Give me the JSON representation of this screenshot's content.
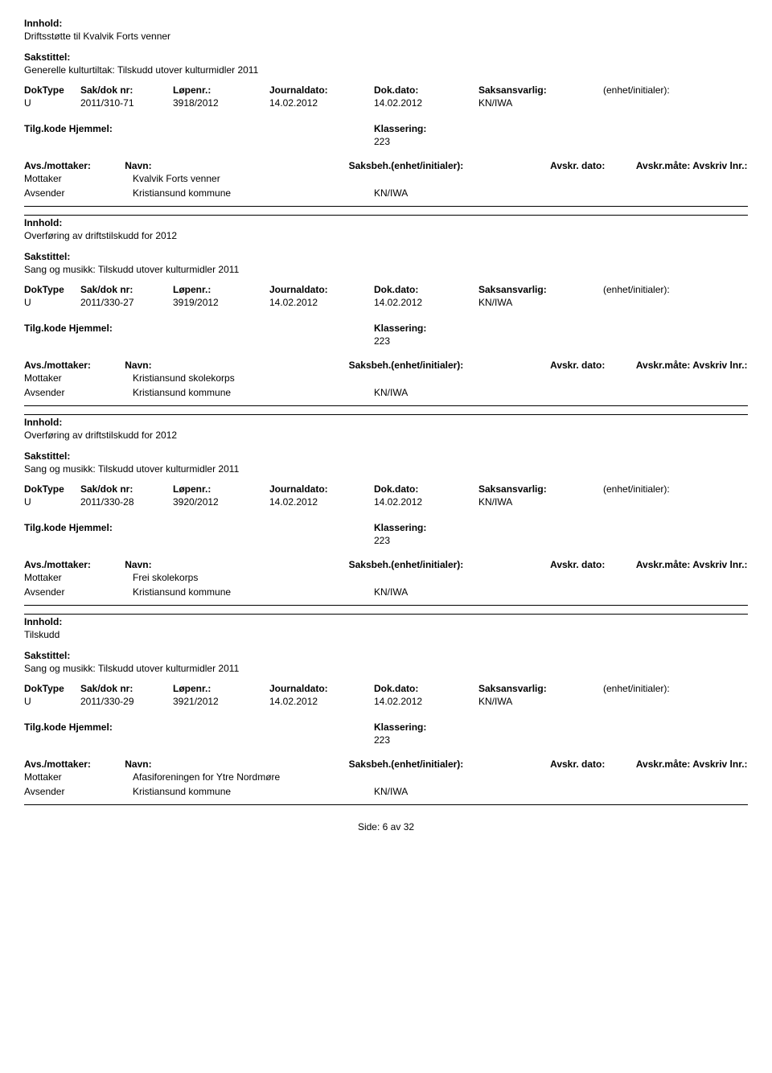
{
  "labels": {
    "innhold": "Innhold:",
    "sakstittel": "Sakstittel:",
    "doktype": "DokType",
    "sakdoknr": "Sak/dok nr:",
    "lopenr": "Løpenr.:",
    "journaldato": "Journaldato:",
    "dokdato": "Dok.dato:",
    "saksansvarlig": "Saksansvarlig:",
    "enhet_initialer": "(enhet/initialer):",
    "tilgkode": "Tilg.kode",
    "hjemmel": "Hjemmel:",
    "klassering": "Klassering:",
    "avsmottaker": "Avs./mottaker:",
    "navn": "Navn:",
    "saksbeh": "Saksbeh.(enhet/initialer):",
    "avskr_dato": "Avskr. dato:",
    "avskr_mate": "Avskr.måte:",
    "avskriv_lnr": "Avskriv lnr.:",
    "mottaker": "Mottaker",
    "avsender": "Avsender"
  },
  "sender_name": "Kristiansund kommune",
  "sender_code": "KN/IWA",
  "records": [
    {
      "innhold": "Driftsstøtte til Kvalvik Forts venner",
      "sakstittel": "Generelle kulturtiltak: Tilskudd utover kulturmidler 2011",
      "doktype": "U",
      "sakdoknr": "2011/310-71",
      "lopenr": "3918/2012",
      "journaldato": "14.02.2012",
      "dokdato": "14.02.2012",
      "saksansvarlig": "KN/IWA",
      "klassering": "223",
      "mottaker_navn": "Kvalvik Forts venner",
      "show_party_labels": false
    },
    {
      "innhold": "Overføring av driftstilskudd for 2012",
      "sakstittel": "Sang og musikk: Tilskudd utover kulturmidler 2011",
      "doktype": "U",
      "sakdoknr": "2011/330-27",
      "lopenr": "3919/2012",
      "journaldato": "14.02.2012",
      "dokdato": "14.02.2012",
      "saksansvarlig": "KN/IWA",
      "klassering": "223",
      "mottaker_navn": "Kristiansund skolekorps",
      "show_party_labels": false
    },
    {
      "innhold": "Overføring av driftstilskudd for 2012",
      "sakstittel": "Sang og musikk: Tilskudd utover kulturmidler 2011",
      "doktype": "U",
      "sakdoknr": "2011/330-28",
      "lopenr": "3920/2012",
      "journaldato": "14.02.2012",
      "dokdato": "14.02.2012",
      "saksansvarlig": "KN/IWA",
      "klassering": "223",
      "mottaker_navn": "Frei skolekorps",
      "show_party_labels": true
    },
    {
      "innhold": "Tilskudd",
      "sakstittel": "Sang og musikk: Tilskudd utover kulturmidler 2011",
      "doktype": "U",
      "sakdoknr": "2011/330-29",
      "lopenr": "3921/2012",
      "journaldato": "14.02.2012",
      "dokdato": "14.02.2012",
      "saksansvarlig": "KN/IWA",
      "klassering": "223",
      "mottaker_navn": "Afasiforeningen for Ytre Nordmøre",
      "show_party_labels": true
    }
  ],
  "footer": {
    "side": "Side:",
    "page": "6",
    "av": "av",
    "total": "32"
  }
}
